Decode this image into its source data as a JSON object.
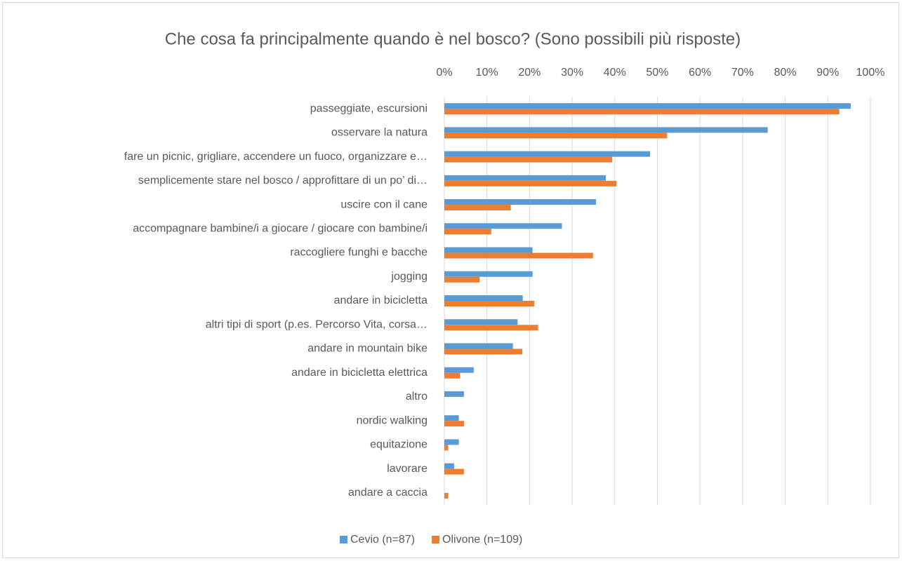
{
  "chart_data": {
    "type": "bar",
    "orientation": "horizontal",
    "title": "Che cosa fa principalmente quando è nel bosco? (Sono possibili più risposte)",
    "categories": [
      "passeggiate, escursioni",
      "osservare la natura",
      "fare un picnic, grigliare, accendere un fuoco, organizzare e…",
      "semplicemente stare nel bosco / approfittare di un po’ di…",
      "uscire con il cane",
      "accompagnare bambine/i a giocare / giocare con bambine/i",
      "raccogliere funghi e bacche",
      "jogging",
      "andare in bicicletta",
      "altri tipi di sport (p.es. Percorso Vita, corsa…",
      "andare in mountain bike",
      "andare in bicicletta elettrica",
      "altro",
      "nordic walking",
      "equitazione",
      "lavorare",
      "andare a caccia"
    ],
    "series": [
      {
        "name": "Cevio (n=87)",
        "color": "#5b9bd5",
        "values": [
          95.4,
          75.9,
          48.3,
          37.9,
          35.6,
          27.6,
          20.7,
          20.7,
          18.4,
          17.2,
          16.1,
          6.9,
          4.6,
          3.4,
          3.4,
          2.3,
          0
        ]
      },
      {
        "name": "Olivone (n=109)",
        "color": "#ed7d31",
        "values": [
          92.7,
          52.3,
          39.4,
          40.4,
          15.6,
          11.0,
          34.9,
          8.3,
          21.1,
          22.0,
          18.3,
          3.7,
          0,
          4.6,
          0.9,
          4.6,
          0.9
        ]
      }
    ],
    "xlim": [
      0,
      100
    ],
    "xticks": [
      {
        "value": 0,
        "label": "0%"
      },
      {
        "value": 10,
        "label": "10%"
      },
      {
        "value": 20,
        "label": "20%"
      },
      {
        "value": 30,
        "label": "30%"
      },
      {
        "value": 40,
        "label": "40%"
      },
      {
        "value": 50,
        "label": "50%"
      },
      {
        "value": 60,
        "label": "60%"
      },
      {
        "value": 70,
        "label": "70%"
      },
      {
        "value": 80,
        "label": "80%"
      },
      {
        "value": 90,
        "label": "90%"
      },
      {
        "value": 100,
        "label": "100%"
      }
    ],
    "grid": true,
    "legend": "bottom"
  }
}
